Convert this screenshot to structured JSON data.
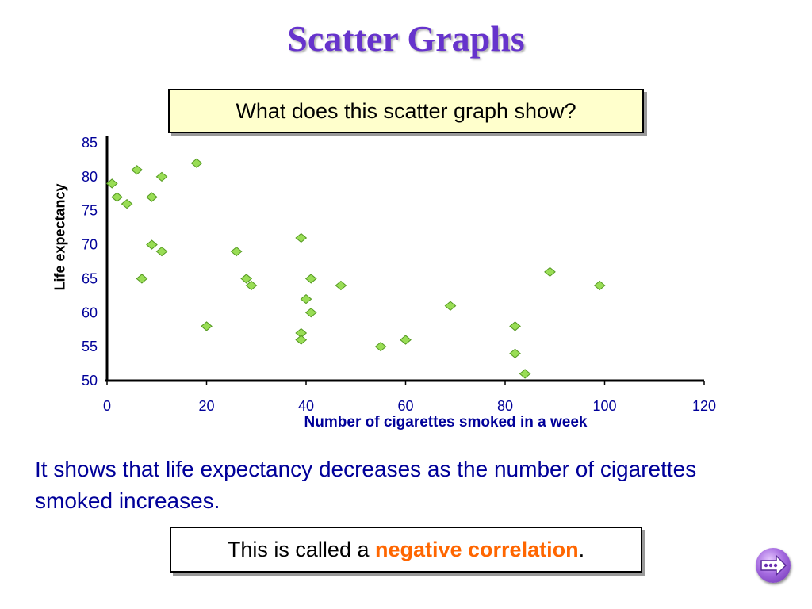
{
  "slide": {
    "title": "Scatter Graphs",
    "question": "What does this scatter graph show?",
    "description": "It shows that life expectancy decreases as the number of cigarettes smoked increases.",
    "answer_prefix": "This is called a ",
    "answer_highlight": "negative correlation",
    "answer_suffix": "."
  },
  "colors": {
    "title": "#6633cc",
    "axis_text": "#000099",
    "marker_fill": "#99dd55",
    "marker_stroke": "#559922",
    "highlight": "#ff6600"
  },
  "icons": {
    "next": "next-arrow-icon"
  },
  "chart_data": {
    "type": "scatter",
    "title": "",
    "xlabel": "Number of cigarettes smoked in a week",
    "ylabel": "Life expectancy",
    "xlim": [
      0,
      120
    ],
    "ylim": [
      50,
      85
    ],
    "xticks": [
      0,
      20,
      40,
      60,
      80,
      100,
      120
    ],
    "yticks": [
      50,
      55,
      60,
      65,
      70,
      75,
      80,
      85
    ],
    "grid": false,
    "legend": "none",
    "points": [
      {
        "x": 1,
        "y": 79
      },
      {
        "x": 2,
        "y": 77
      },
      {
        "x": 4,
        "y": 76
      },
      {
        "x": 6,
        "y": 81
      },
      {
        "x": 7,
        "y": 65
      },
      {
        "x": 9,
        "y": 77
      },
      {
        "x": 9,
        "y": 70
      },
      {
        "x": 11,
        "y": 69
      },
      {
        "x": 11,
        "y": 80
      },
      {
        "x": 18,
        "y": 82
      },
      {
        "x": 20,
        "y": 58
      },
      {
        "x": 26,
        "y": 69
      },
      {
        "x": 28,
        "y": 65
      },
      {
        "x": 29,
        "y": 64
      },
      {
        "x": 39,
        "y": 71
      },
      {
        "x": 39,
        "y": 57
      },
      {
        "x": 39,
        "y": 56
      },
      {
        "x": 40,
        "y": 62
      },
      {
        "x": 41,
        "y": 65
      },
      {
        "x": 41,
        "y": 60
      },
      {
        "x": 47,
        "y": 64
      },
      {
        "x": 55,
        "y": 55
      },
      {
        "x": 60,
        "y": 56
      },
      {
        "x": 69,
        "y": 61
      },
      {
        "x": 82,
        "y": 58
      },
      {
        "x": 82,
        "y": 54
      },
      {
        "x": 84,
        "y": 51
      },
      {
        "x": 89,
        "y": 66
      },
      {
        "x": 99,
        "y": 64
      }
    ]
  }
}
